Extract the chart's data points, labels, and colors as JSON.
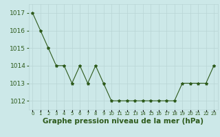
{
  "x": [
    0,
    1,
    2,
    3,
    4,
    5,
    6,
    7,
    8,
    9,
    10,
    11,
    12,
    13,
    14,
    15,
    16,
    17,
    18,
    19,
    20,
    21,
    22,
    23
  ],
  "y": [
    1017,
    1016,
    1015,
    1014,
    1014,
    1013,
    1014,
    1013,
    1014,
    1013,
    1012,
    1012,
    1012,
    1012,
    1012,
    1012,
    1012,
    1012,
    1012,
    1013,
    1013,
    1013,
    1013,
    1014
  ],
  "line_color": "#2d5a1b",
  "marker": "*",
  "marker_size": 3,
  "background_color": "#cce8e8",
  "grid_color": "#b8d4d4",
  "xlabel": "Graphe pression niveau de la mer (hPa)",
  "xlabel_fontsize": 7.5,
  "ylabel_ticks": [
    1012,
    1013,
    1014,
    1015,
    1016,
    1017
  ],
  "ylim": [
    1011.5,
    1017.5
  ],
  "xlim": [
    -0.5,
    23.5
  ],
  "ytick_fontsize": 6.5,
  "xtick_fontsize": 5.0
}
